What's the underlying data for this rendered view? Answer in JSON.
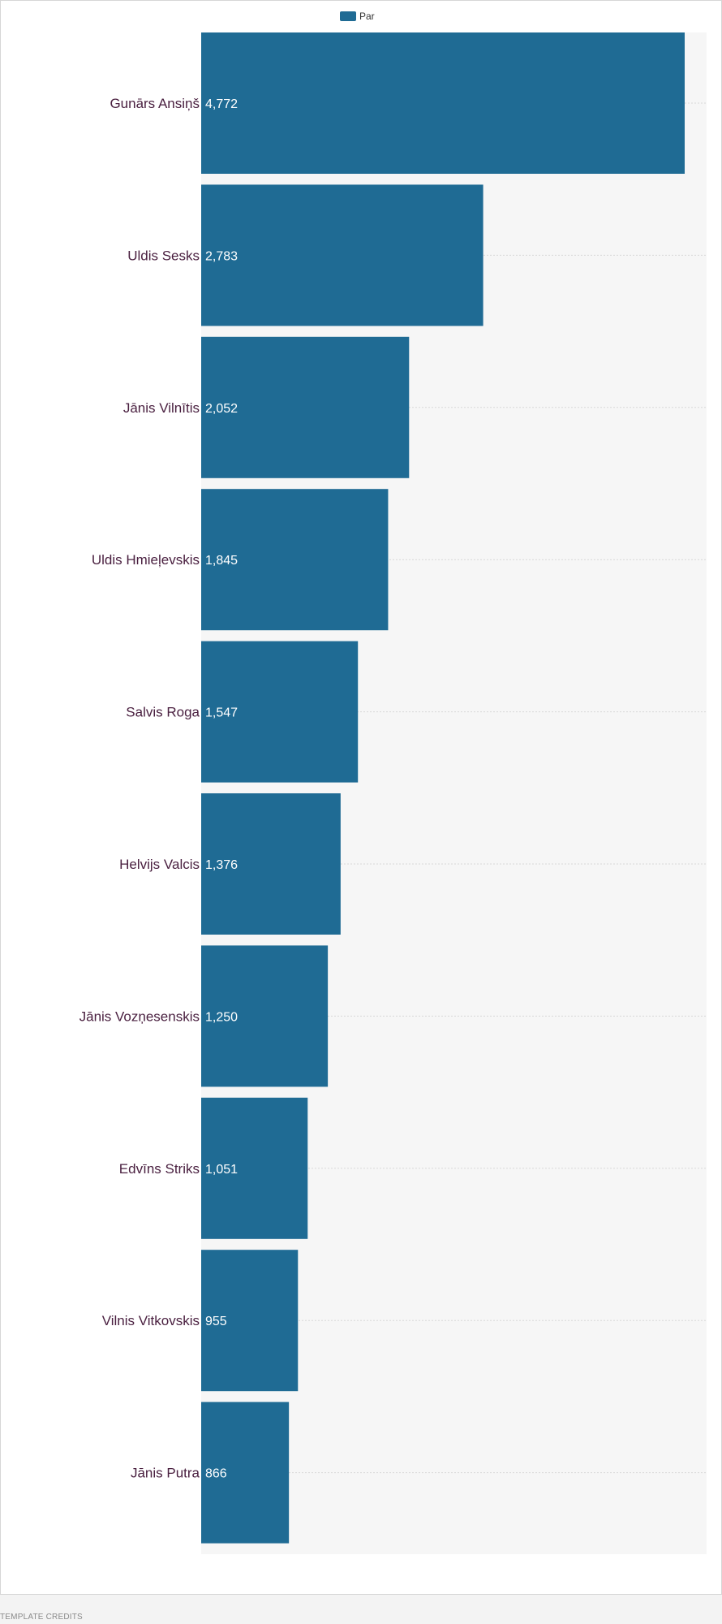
{
  "chart_data": {
    "type": "bar",
    "orientation": "horizontal",
    "categories": [
      "Gunārs Ansiņš",
      "Uldis Sesks",
      "Jānis Vilnītis",
      "Uldis Hmieļevskis",
      "Salvis Roga",
      "Helvijs Valcis",
      "Jānis Vozņesenskis",
      "Edvīns Striks",
      "Vilnis Vitkovskis",
      "Jānis Putra"
    ],
    "series": [
      {
        "name": "Par",
        "values": [
          4772,
          2783,
          2052,
          1845,
          1547,
          1376,
          1250,
          1051,
          955,
          866
        ],
        "labels": [
          "4,772",
          "2,783",
          "2,052",
          "1,845",
          "1,547",
          "1,376",
          "1,250",
          "1,051",
          "955",
          "866"
        ]
      }
    ],
    "title": "",
    "xlabel": "",
    "ylabel": "",
    "xlim": [
      0,
      5000
    ],
    "grid": true,
    "legend_position": "top"
  },
  "colors": {
    "bar": "#1f6b94",
    "plot_background": "#f6f6f6",
    "category_text": "#4a2040"
  },
  "footer": {
    "credits": "TEMPLATE CREDITS"
  }
}
